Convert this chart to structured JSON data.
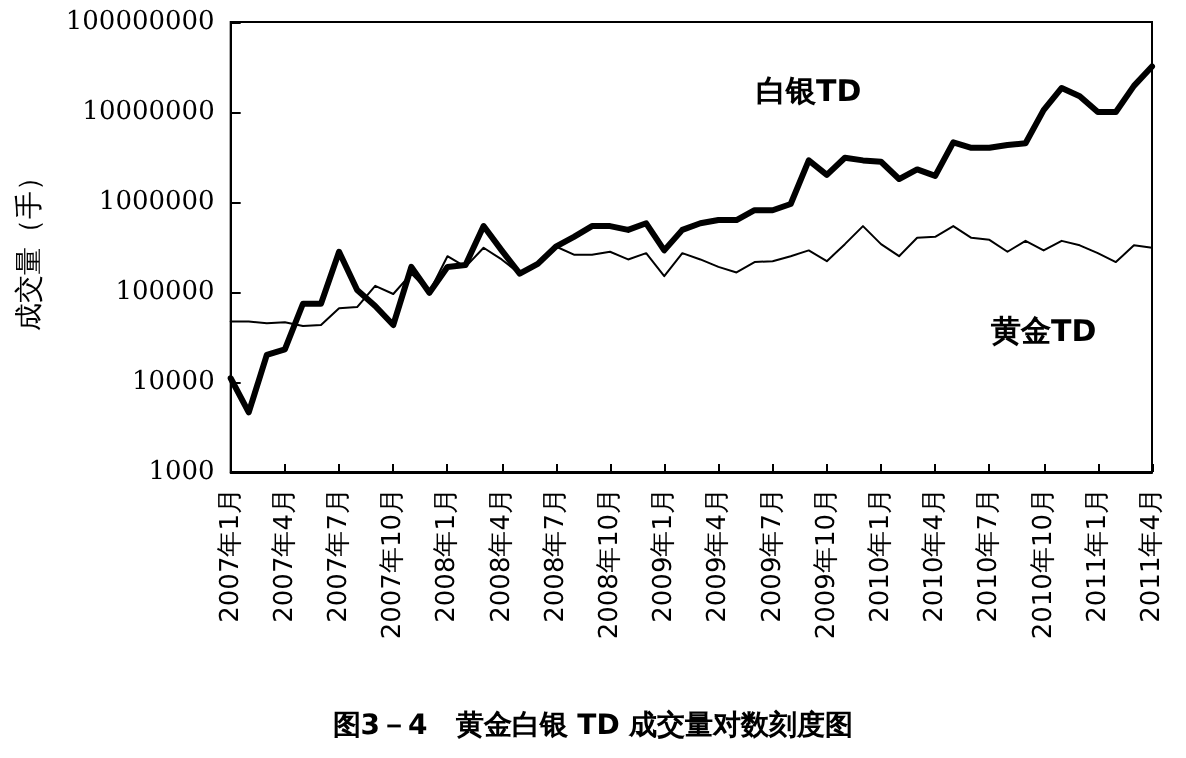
{
  "chart_data": {
    "type": "line",
    "title": "图3－4　黄金白银 TD 成交量对数刻度图",
    "ylabel": "成交量（手）",
    "categories": [
      "2007年1月",
      null,
      null,
      "2007年4月",
      null,
      null,
      "2007年7月",
      null,
      null,
      "2007年10月",
      null,
      null,
      "2008年1月",
      null,
      null,
      "2008年4月",
      null,
      null,
      "2008年7月",
      null,
      null,
      "2008年10月",
      null,
      null,
      "2009年1月",
      null,
      null,
      "2009年4月",
      null,
      null,
      "2009年7月",
      null,
      null,
      "2009年10月",
      null,
      null,
      "2010年1月",
      null,
      null,
      "2010年4月",
      null,
      null,
      "2010年7月",
      null,
      null,
      "2010年10月",
      null,
      null,
      "2011年1月",
      null,
      null,
      "2011年4月"
    ],
    "series": [
      {
        "name": "白银TD",
        "color": "#000000",
        "values": [
          11000,
          4600,
          20000,
          23000,
          74000,
          74000,
          280000,
          105000,
          70000,
          43000,
          190000,
          98000,
          190000,
          200000,
          540000,
          290000,
          160000,
          205000,
          320000,
          410000,
          540000,
          540000,
          490000,
          580000,
          290000,
          490000,
          580000,
          630000,
          630000,
          810000,
          810000,
          950000,
          2900000,
          2000000,
          3100000,
          2900000,
          2800000,
          1800000,
          2300000,
          1950000,
          4600000,
          4000000,
          4000000,
          4300000,
          4500000,
          10500000,
          18500000,
          15000000,
          10000000,
          10000000,
          19500000,
          32000000
        ]
      },
      {
        "name": "黄金TD",
        "color": "#000000",
        "values": [
          47000,
          47000,
          45000,
          46000,
          42000,
          43000,
          66000,
          68000,
          117000,
          95000,
          160000,
          100000,
          250000,
          190000,
          310000,
          230000,
          160000,
          205000,
          320000,
          260000,
          260000,
          280000,
          230000,
          270000,
          150000,
          270000,
          230000,
          190000,
          165000,
          215000,
          220000,
          250000,
          290000,
          220000,
          340000,
          540000,
          340000,
          250000,
          400000,
          410000,
          540000,
          400000,
          380000,
          280000,
          370000,
          290000,
          370000,
          330000,
          270000,
          215000,
          330000,
          310000
        ]
      }
    ],
    "log": "y",
    "ylim": [
      1000,
      100000000
    ],
    "yticks": [
      1000,
      10000,
      100000,
      1000000,
      10000000,
      100000000
    ],
    "grid": false,
    "legend": false,
    "marker": "none",
    "line_style": "solid"
  }
}
